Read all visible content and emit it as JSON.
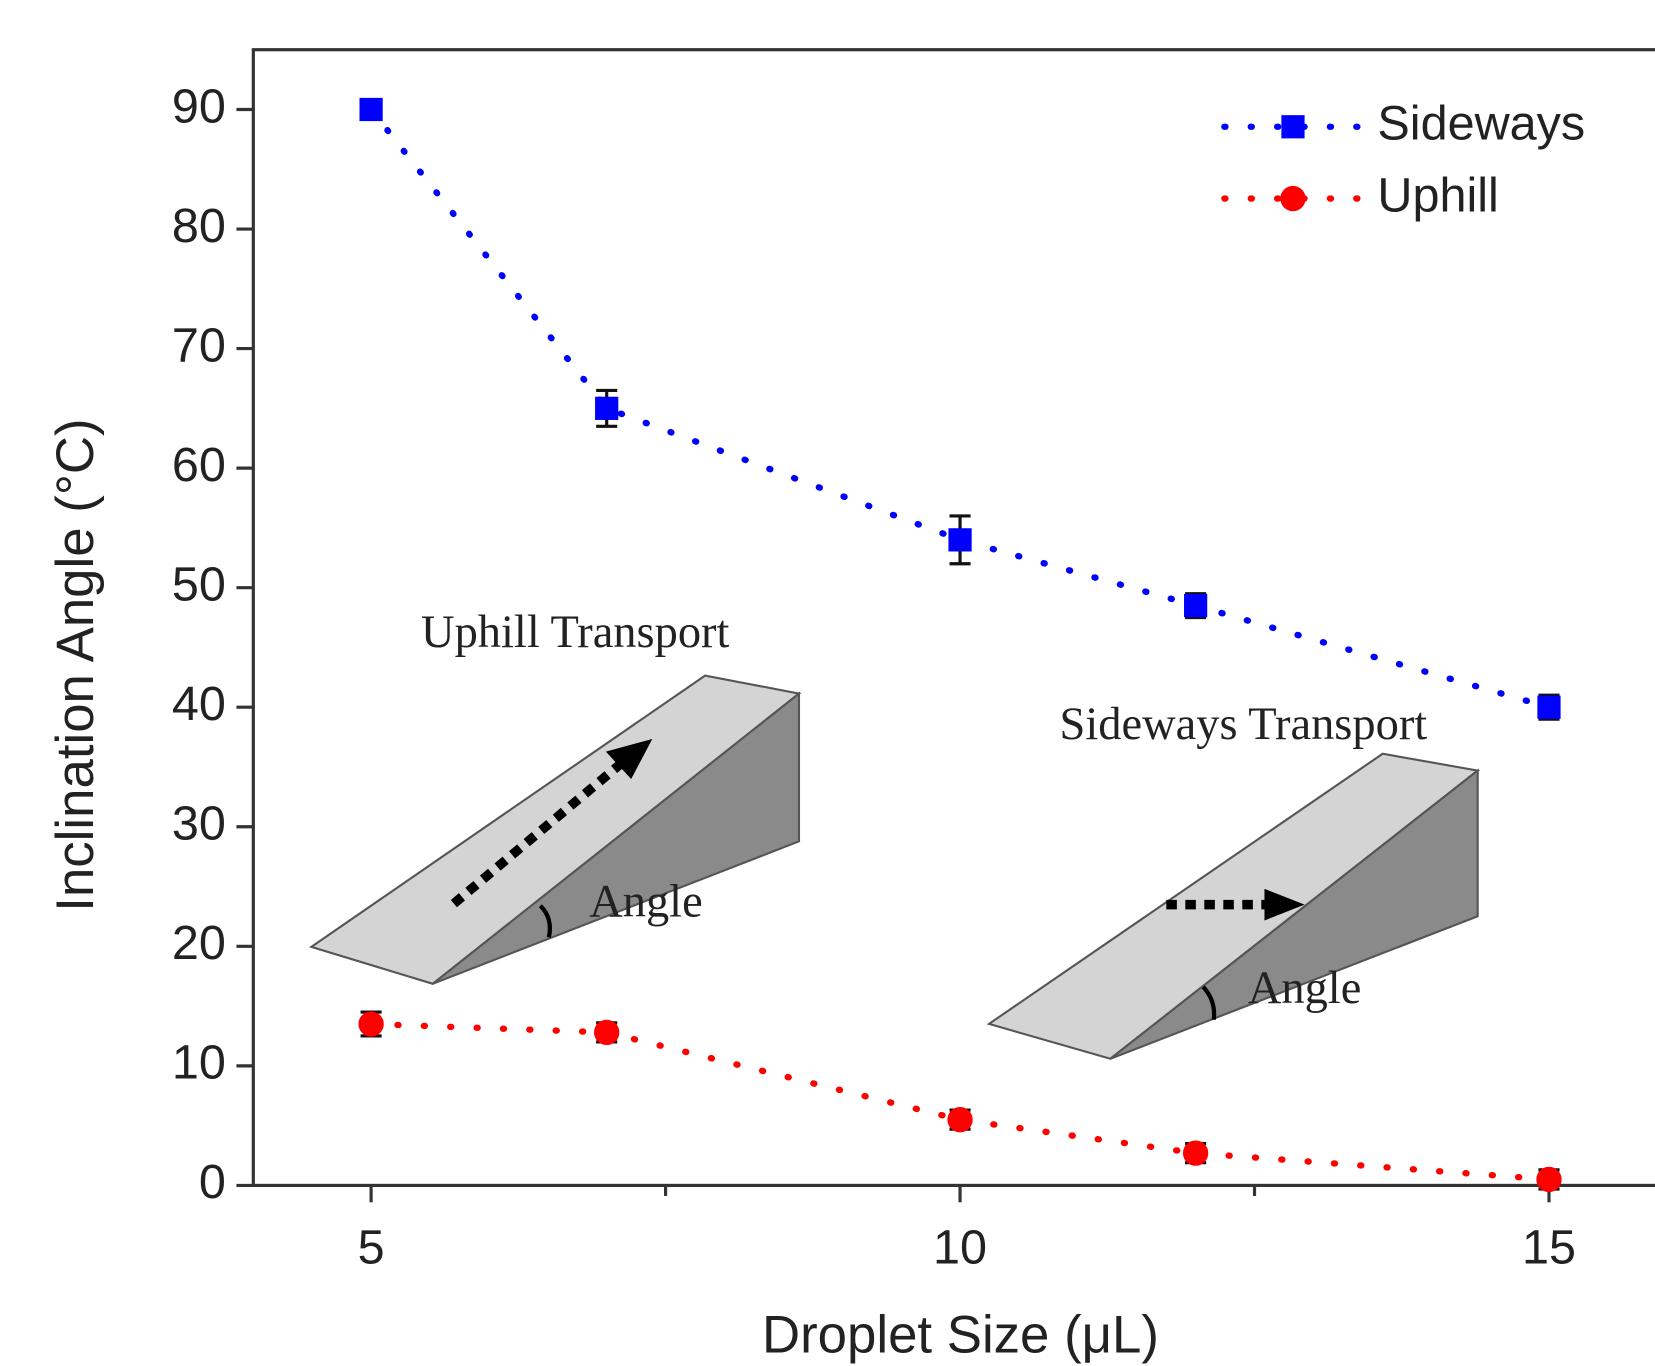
{
  "chart_data": {
    "type": "line",
    "x_label": "Droplet Size (μL)",
    "y_label": "Inclination Angle (°C)",
    "x": [
      5,
      7,
      10,
      12,
      15
    ],
    "series": [
      {
        "name": "Sideways",
        "color": "#0000ff",
        "marker": "square",
        "values": [
          90,
          65,
          54,
          48.5,
          40
        ],
        "errors": [
          0.5,
          1.5,
          2,
          1,
          1
        ]
      },
      {
        "name": "Uphill",
        "color": "#ff0000",
        "marker": "circle",
        "values": [
          13.5,
          12.8,
          5.5,
          2.7,
          0.5
        ],
        "errors": [
          1,
          0.8,
          0.8,
          0.8,
          0.8
        ]
      }
    ],
    "xlim": [
      4,
      15.9
    ],
    "ylim": [
      0,
      95
    ],
    "xticks": [
      5,
      10,
      15
    ],
    "xminor": [
      7.5,
      12.5
    ],
    "yticks": [
      0,
      10,
      20,
      30,
      40,
      50,
      60,
      70,
      80,
      90
    ],
    "legend": "upper right",
    "annotations": [
      "Uphill Transport",
      "Angle",
      "Sideways Transport",
      "Angle"
    ]
  }
}
